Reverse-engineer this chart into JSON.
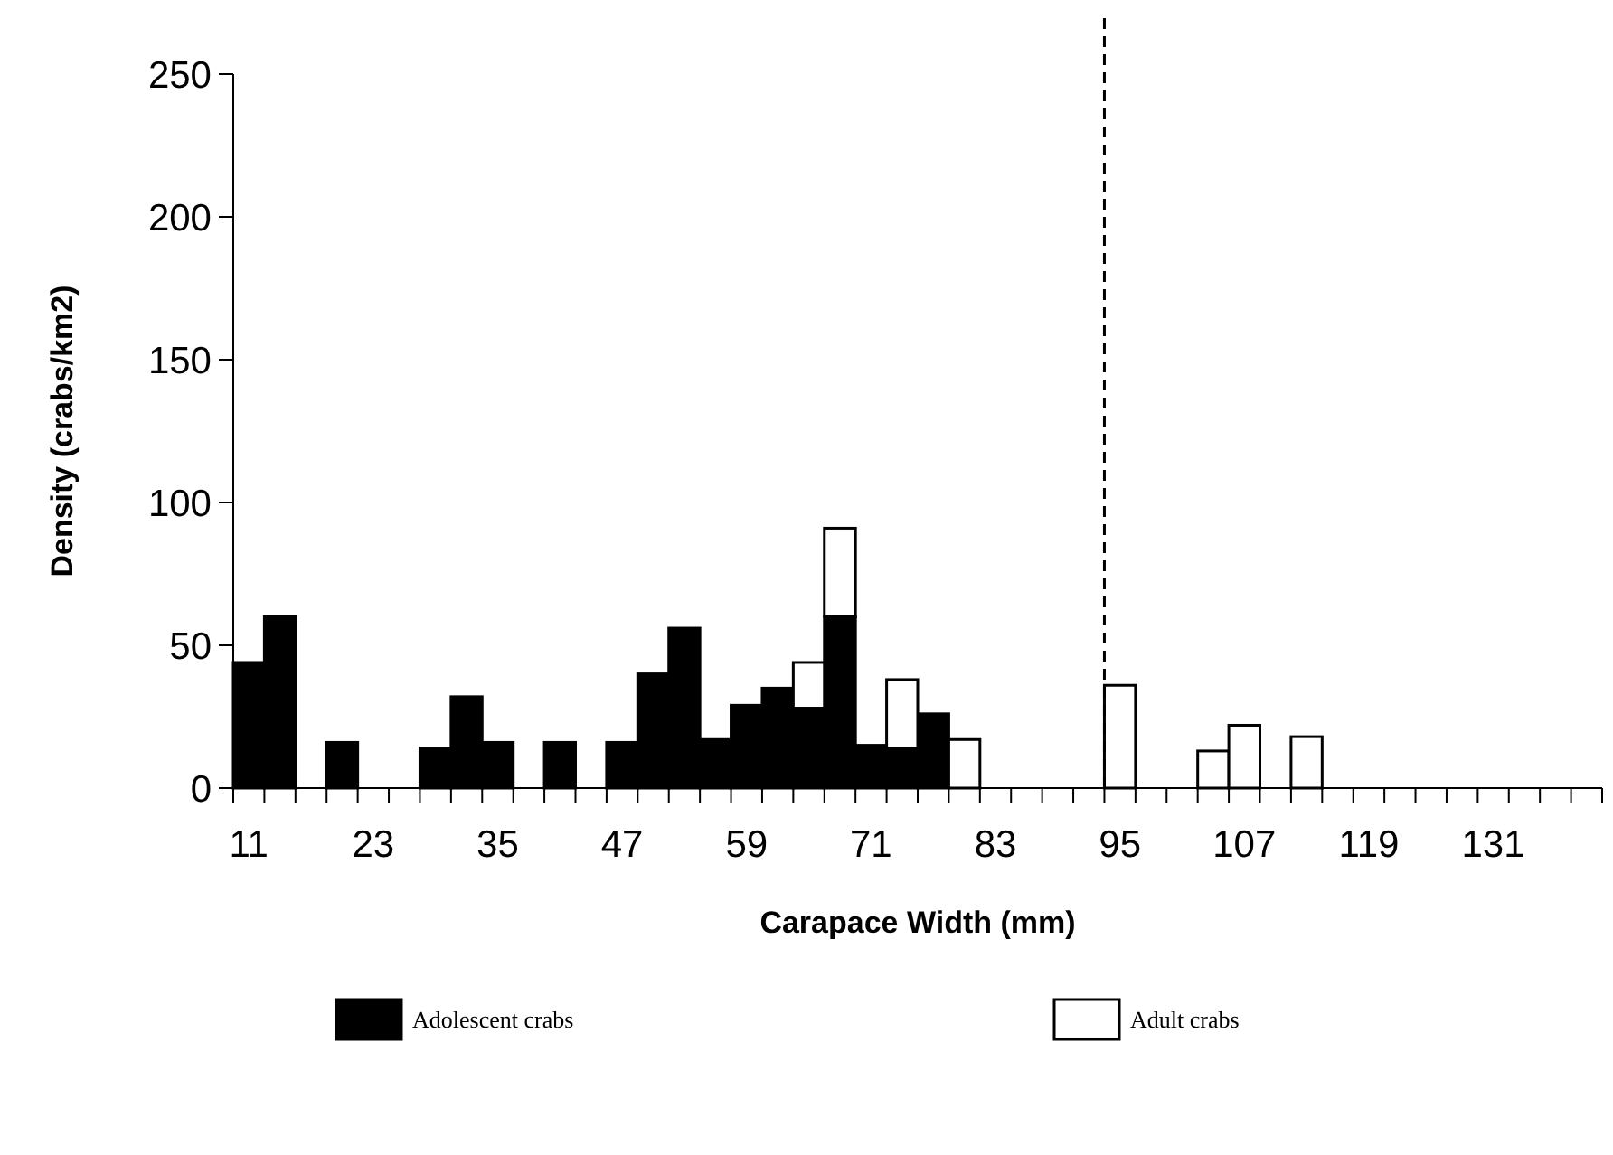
{
  "chart_data": {
    "type": "bar",
    "stacked": true,
    "xlabel": "Carapace Width (mm)",
    "ylabel": "Density (crabs/km2)",
    "x": [
      11,
      14,
      17,
      20,
      23,
      26,
      29,
      32,
      35,
      38,
      41,
      44,
      47,
      50,
      53,
      56,
      59,
      62,
      65,
      68,
      71,
      74,
      77,
      80,
      83,
      86,
      89,
      92,
      95,
      98,
      101,
      104,
      107,
      110,
      113,
      116,
      119,
      122,
      125,
      128,
      131,
      134,
      137,
      140
    ],
    "series": [
      {
        "name": "Adolescent crabs",
        "color": "#000000",
        "values": [
          44,
          60,
          0,
          16,
          0,
          0,
          14,
          32,
          16,
          0,
          16,
          0,
          16,
          40,
          56,
          17,
          29,
          35,
          28,
          60,
          15,
          14,
          26,
          0,
          0,
          0,
          0,
          0,
          0,
          0,
          0,
          0,
          0,
          0,
          0,
          0,
          0,
          0,
          0,
          0,
          0,
          0,
          0,
          0
        ]
      },
      {
        "name": "Adult crabs",
        "color": "#ffffff",
        "values": [
          0,
          0,
          0,
          0,
          0,
          0,
          0,
          0,
          0,
          0,
          0,
          0,
          0,
          0,
          0,
          0,
          0,
          0,
          16,
          31,
          0,
          24,
          0,
          17,
          0,
          0,
          0,
          0,
          36,
          0,
          0,
          13,
          22,
          0,
          18,
          0,
          0,
          0,
          0,
          0,
          0,
          0,
          0,
          0
        ]
      }
    ],
    "xlim": [
      9.5,
      141.5
    ],
    "xticks": [
      11,
      23,
      35,
      47,
      59,
      71,
      83,
      95,
      107,
      119,
      131,
      {
        "value": 9.5,
        "label": null
      },
      {
        "value": 12.5,
        "label": null
      },
      {
        "value": 15.5,
        "label": null
      },
      {
        "value": 18.5,
        "label": null
      },
      {
        "value": 21.5,
        "label": null
      },
      {
        "value": 24.5,
        "label": null
      },
      {
        "value": 27.5,
        "label": null
      },
      {
        "value": 30.5,
        "label": null
      },
      {
        "value": 33.5,
        "label": null
      },
      {
        "value": 36.5,
        "label": null
      },
      {
        "value": 39.5,
        "label": null
      },
      {
        "value": 42.5,
        "label": null
      },
      {
        "value": 45.5,
        "label": null
      },
      {
        "value": 48.5,
        "label": null
      },
      {
        "value": 51.5,
        "label": null
      },
      {
        "value": 54.5,
        "label": null
      },
      {
        "value": 57.5,
        "label": null
      },
      {
        "value": 60.5,
        "label": null
      },
      {
        "value": 63.5,
        "label": null
      },
      {
        "value": 66.5,
        "label": null
      },
      {
        "value": 69.5,
        "label": null
      },
      {
        "value": 72.5,
        "label": null
      },
      {
        "value": 75.5,
        "label": null
      },
      {
        "value": 78.5,
        "label": null
      },
      {
        "value": 81.5,
        "label": null
      },
      {
        "value": 84.5,
        "label": null
      },
      {
        "value": 87.5,
        "label": null
      },
      {
        "value": 90.5,
        "label": null
      },
      {
        "value": 93.5,
        "label": null
      },
      {
        "value": 96.5,
        "label": null
      },
      {
        "value": 99.5,
        "label": null
      },
      {
        "value": 102.5,
        "label": null
      },
      {
        "value": 105.5,
        "label": null
      },
      {
        "value": 108.5,
        "label": null
      },
      {
        "value": 111.5,
        "label": null
      },
      {
        "value": 114.5,
        "label": null
      },
      {
        "value": 117.5,
        "label": null
      },
      {
        "value": 120.5,
        "label": null
      },
      {
        "value": 123.5,
        "label": null
      },
      {
        "value": 126.5,
        "label": null
      },
      {
        "value": 129.5,
        "label": null
      },
      {
        "value": 132.5,
        "label": null
      },
      {
        "value": 135.5,
        "label": null
      },
      {
        "value": 138.5,
        "label": null
      },
      {
        "value": 141.5,
        "label": null
      }
    ],
    "ylim": [
      0,
      250
    ],
    "yticks": [
      0,
      50,
      100,
      150,
      200,
      250
    ],
    "legend": "bottom",
    "ref_lines": [
      {
        "axis": "x",
        "value": 93.5,
        "line_style": "dashed",
        "color": "#000000"
      }
    ]
  }
}
